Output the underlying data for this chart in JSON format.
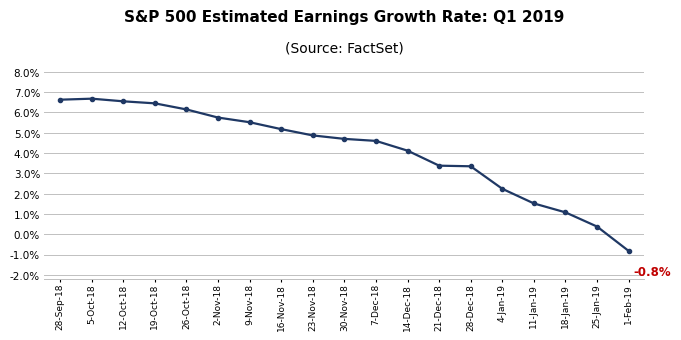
{
  "title": "S&P 500 Estimated Earnings Growth Rate: Q1 2019",
  "subtitle": "(Source: FactSet)",
  "title_fontsize": 11,
  "subtitle_fontsize": 10,
  "line_color": "#1F3864",
  "marker_color": "#1F3864",
  "annotation_color": "#C00000",
  "annotation_text": "-0.8%",
  "background_color": "#FFFFFF",
  "grid_color": "#C0C0C0",
  "ylim": [
    -0.022,
    0.082
  ],
  "yticks": [
    -0.02,
    -0.01,
    0.0,
    0.01,
    0.02,
    0.03,
    0.04,
    0.05,
    0.06,
    0.07,
    0.08
  ],
  "x_labels": [
    "28-Sep-18",
    "5-Oct-18",
    "12-Oct-18",
    "19-Oct-18",
    "26-Oct-18",
    "2-Nov-18",
    "9-Nov-18",
    "16-Nov-18",
    "23-Nov-18",
    "30-Nov-18",
    "7-Dec-18",
    "14-Dec-18",
    "21-Dec-18",
    "28-Dec-18",
    "4-Jan-19",
    "11-Jan-19",
    "18-Jan-19",
    "25-Jan-19",
    "1-Feb-19"
  ],
  "y_values": [
    0.0663,
    0.0668,
    0.0655,
    0.0645,
    0.0615,
    0.0575,
    0.0552,
    0.0518,
    0.0487,
    0.047,
    0.046,
    0.0412,
    0.0338,
    0.0335,
    0.0224,
    0.0152,
    0.0108,
    0.0038,
    -0.0082
  ]
}
